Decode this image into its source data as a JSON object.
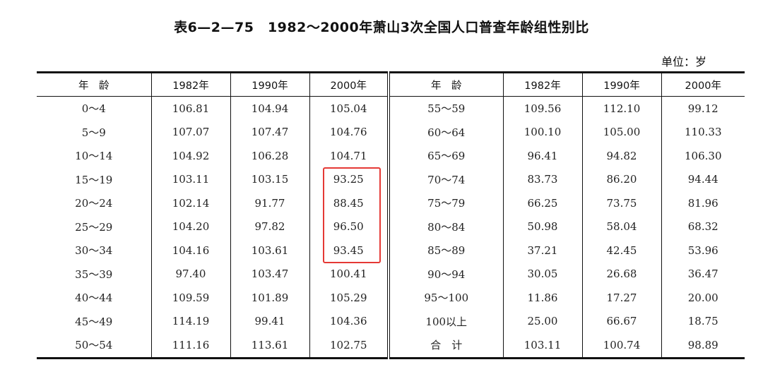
{
  "title": "表6—2—75　1982～2000年萧山3次全国人口普查年龄组性别比",
  "unit": "单位：岁",
  "headers": [
    "年　龄",
    "1982年",
    "1990年",
    "2000年",
    "年　龄",
    "1982年",
    "1990年",
    "2000年"
  ],
  "rows": [
    [
      "0～4",
      "106.81",
      "104.94",
      "105.04",
      "55～59",
      "109.56",
      "112.10",
      "99.12"
    ],
    [
      "5～9",
      "107.07",
      "107.47",
      "104.76",
      "60～64",
      "100.10",
      "105.00",
      "110.33"
    ],
    [
      "10～14",
      "104.92",
      "106.28",
      "104.71",
      "65～69",
      "96.41",
      "94.82",
      "106.30"
    ],
    [
      "15～19",
      "103.11",
      "103.15",
      "93.25",
      "70～74",
      "83.73",
      "86.20",
      "94.44"
    ],
    [
      "20～24",
      "102.14",
      "91.77",
      "88.45",
      "75～79",
      "66.25",
      "73.75",
      "81.96"
    ],
    [
      "25～29",
      "104.20",
      "97.82",
      "96.50",
      "80～84",
      "50.98",
      "58.04",
      "68.32"
    ],
    [
      "30～34",
      "104.16",
      "103.61",
      "93.45",
      "85～89",
      "37.21",
      "42.45",
      "53.96"
    ],
    [
      "35～39",
      "97.40",
      "103.47",
      "100.41",
      "90～94",
      "30.05",
      "26.68",
      "36.47"
    ],
    [
      "40～44",
      "109.59",
      "101.89",
      "105.29",
      "95～100",
      "11.86",
      "17.27",
      "20.00"
    ],
    [
      "45～49",
      "114.19",
      "99.41",
      "104.36",
      "100以上",
      "25.00",
      "66.67",
      "18.75"
    ],
    [
      "50～54",
      "111.16",
      "113.61",
      "102.75",
      "合　计",
      "103.11",
      "100.74",
      "98.89"
    ]
  ],
  "highlight_color": "#e53935"
}
